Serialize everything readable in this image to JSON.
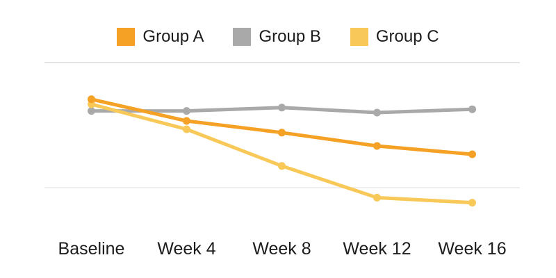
{
  "chart_data": {
    "type": "line",
    "title": "",
    "xlabel": "",
    "ylabel": "",
    "categories": [
      "Baseline",
      "Week 4",
      "Week 8",
      "Week 12",
      "Week 16"
    ],
    "series": [
      {
        "name": "Group A",
        "color": "#F5A126",
        "z": 3,
        "values": [
          78,
          65,
          58,
          50,
          45
        ]
      },
      {
        "name": "Group B",
        "color": "#A9A9A9",
        "z": 1,
        "values": [
          71,
          71,
          73,
          70,
          72
        ]
      },
      {
        "name": "Group C",
        "color": "#F8C858",
        "z": 2,
        "values": [
          75,
          60,
          38,
          19,
          16
        ]
      }
    ],
    "ylim": [
      0,
      100
    ],
    "y_axis_labels_shown": false,
    "x_axis_labels_shown": true,
    "gridlines": [
      {
        "value": 100,
        "color": "#DCDCDC"
      },
      {
        "value": 25,
        "color": "#E8E8E8"
      }
    ],
    "legend_position": "top",
    "marker": "circle",
    "background_color": "#FFFFFF",
    "text_color": "#1C1C1C"
  }
}
